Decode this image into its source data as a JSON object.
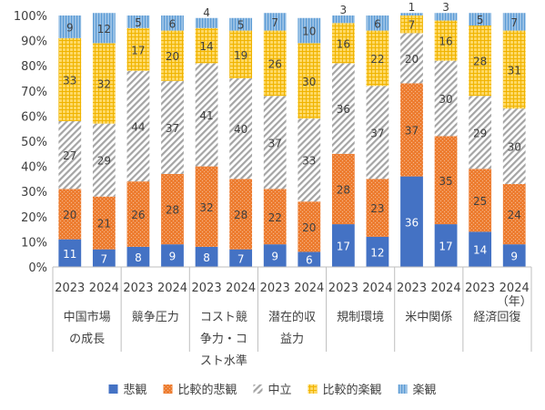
{
  "chart_data": {
    "type": "bar",
    "stacked": true,
    "percent": true,
    "ylim": [
      0,
      100
    ],
    "y_ticks": [
      "0%",
      "10%",
      "20%",
      "30%",
      "40%",
      "50%",
      "60%",
      "70%",
      "80%",
      "90%",
      "100%"
    ],
    "grid": false,
    "legend_position": "bottom",
    "x_unit_note": "（年）",
    "groups": [
      {
        "name_lines": [
          "中国市場",
          "の成長"
        ],
        "years": [
          "2023",
          "2024"
        ]
      },
      {
        "name_lines": [
          "競争圧力"
        ],
        "years": [
          "2023",
          "2024"
        ]
      },
      {
        "name_lines": [
          "コスト競",
          "争力・コ",
          "スト水準"
        ],
        "years": [
          "2023",
          "2024"
        ]
      },
      {
        "name_lines": [
          "潜在的収",
          "益力"
        ],
        "years": [
          "2023",
          "2024"
        ]
      },
      {
        "name_lines": [
          "規制環境"
        ],
        "years": [
          "2023",
          "2024"
        ]
      },
      {
        "name_lines": [
          "米中関係"
        ],
        "years": [
          "2023",
          "2024"
        ]
      },
      {
        "name_lines": [
          "経済回復"
        ],
        "years": [
          "2023",
          "2024"
        ]
      }
    ],
    "series": [
      {
        "name": "悲観",
        "color": "#4472c4",
        "pattern": "solid",
        "label_color": "#404040",
        "values": [
          11,
          7,
          8,
          9,
          8,
          7,
          9,
          6,
          17,
          12,
          36,
          17,
          14,
          9
        ]
      },
      {
        "name": "比較的悲観",
        "color": "#ed7d31",
        "pattern": "dots",
        "label_color": "#404040",
        "values": [
          20,
          21,
          26,
          28,
          32,
          28,
          22,
          20,
          28,
          23,
          37,
          35,
          25,
          24
        ]
      },
      {
        "name": "中立",
        "color": "#a5a5a5",
        "pattern": "diagonal",
        "label_color": "#404040",
        "values": [
          27,
          29,
          44,
          37,
          41,
          40,
          37,
          33,
          36,
          37,
          20,
          30,
          29,
          30
        ]
      },
      {
        "name": "比較的楽観",
        "color": "#ffc000",
        "pattern": "grid",
        "label_color": "#404040",
        "values": [
          33,
          32,
          17,
          20,
          14,
          19,
          26,
          30,
          16,
          22,
          7,
          16,
          28,
          31
        ]
      },
      {
        "name": "楽観",
        "color": "#5b9bd5",
        "pattern": "vertical",
        "label_color": "#404040",
        "values": [
          9,
          12,
          5,
          6,
          4,
          5,
          7,
          10,
          3,
          6,
          1,
          3,
          5,
          7
        ]
      }
    ]
  }
}
